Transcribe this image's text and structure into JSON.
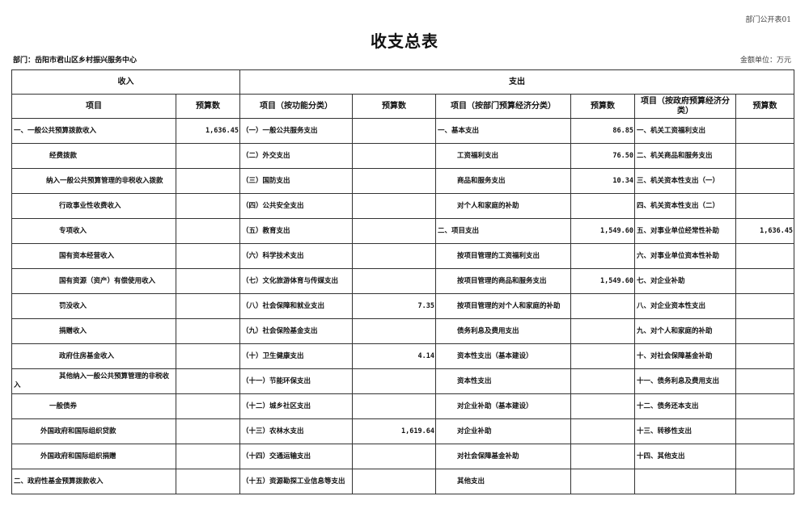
{
  "doc_code": "部门公开表01",
  "title": "收支总表",
  "department": "部门：岳阳市君山区乡村振兴服务中心",
  "unit": "金额单位：万元",
  "section_income": "收入",
  "section_expense": "支出",
  "headers": [
    "项目",
    "预算数",
    "项目（按功能分类）",
    "预算数",
    "项目（按部门预算经济分类）",
    "预算数",
    "项目（按政府预算经济分类）",
    "预算数"
  ],
  "rows": [
    [
      "一、一般公共预算拨款收入",
      "1,636.45",
      "（一）一般公共服务支出",
      "",
      "一、基本支出",
      "86.85",
      "一、机关工资福利支出",
      ""
    ],
    [
      "经费拨款",
      "",
      "（二）外交支出",
      "",
      "工资福利支出",
      "76.50",
      "二、机关商品和服务支出",
      ""
    ],
    [
      "纳入一般公共预算管理的非税收入拨款",
      "",
      "（三）国防支出",
      "",
      "商品和服务支出",
      "10.34",
      "三、机关资本性支出（一）",
      ""
    ],
    [
      "行政事业性收费收入",
      "",
      "（四）公共安全支出",
      "",
      "对个人和家庭的补助",
      "",
      "四、机关资本性支出（二）",
      ""
    ],
    [
      "专项收入",
      "",
      "（五）教育支出",
      "",
      "二、项目支出",
      "1,549.60",
      "五、对事业单位经常性补助",
      "1,636.45"
    ],
    [
      "国有资本经营收入",
      "",
      "（六）科学技术支出",
      "",
      "按项目管理的工资福利支出",
      "",
      "六、对事业单位资本性补助",
      ""
    ],
    [
      "国有资源（资产）有偿使用收入",
      "",
      "（七）文化旅游体育与传媒支出",
      "",
      "按项目管理的商品和服务支出",
      "1,549.60",
      "七、对企业补助",
      ""
    ],
    [
      "罚没收入",
      "",
      "（八）社会保障和就业支出",
      "7.35",
      "按项目管理的对个人和家庭的补助",
      "",
      "八、对企业资本性支出",
      ""
    ],
    [
      "捐赠收入",
      "",
      "（九）社会保险基金支出",
      "",
      "债务利息及费用支出",
      "",
      "九、对个人和家庭的补助",
      ""
    ],
    [
      "政府住房基金收入",
      "",
      "（十）卫生健康支出",
      "4.14",
      "资本性支出（基本建设）",
      "",
      "十、对社会保障基金补助",
      ""
    ],
    [
      "其他纳入一般公共预算管理的非税收入",
      "",
      "（十一）节能环保支出",
      "",
      "资本性支出",
      "",
      "十一、债务利息及费用支出",
      ""
    ],
    [
      "一般债券",
      "",
      "（十二）城乡社区支出",
      "",
      "对企业补助（基本建设）",
      "",
      "十二、债务还本支出",
      ""
    ],
    [
      "外国政府和国际组织贷款",
      "",
      "（十三）农林水支出",
      "1,619.64",
      "对企业补助",
      "",
      "十三、转移性支出",
      ""
    ],
    [
      "外国政府和国际组织捐赠",
      "",
      "（十四）交通运输支出",
      "",
      "对社会保障基金补助",
      "",
      "十四、其他支出",
      ""
    ],
    [
      "二、政府性基金预算拨款收入",
      "",
      "（十五）资源勘探工业信息等支出",
      "",
      "其他支出",
      "",
      "",
      ""
    ]
  ]
}
